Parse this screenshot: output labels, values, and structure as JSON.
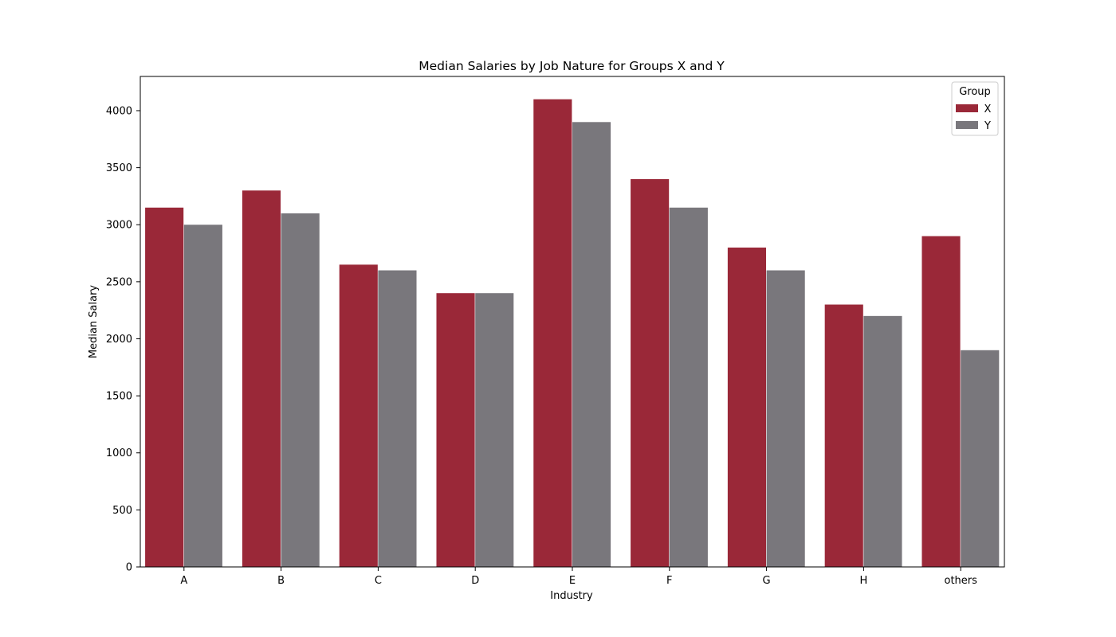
{
  "chart_data": {
    "type": "bar",
    "title": "Median Salaries by Job Nature for Groups X and Y",
    "xlabel": "Industry",
    "ylabel": "Median Salary",
    "categories": [
      "A",
      "B",
      "C",
      "D",
      "E",
      "F",
      "G",
      "H",
      "others"
    ],
    "series": [
      {
        "name": "X",
        "color": "#9a2838",
        "values": [
          3150,
          3300,
          2650,
          2400,
          4100,
          3400,
          2800,
          2300,
          2900
        ]
      },
      {
        "name": "Y",
        "color": "#79777c",
        "values": [
          3000,
          3100,
          2600,
          2400,
          3900,
          3150,
          2600,
          2200,
          1900
        ]
      }
    ],
    "ylim": [
      0,
      4300
    ],
    "yticks": [
      0,
      500,
      1000,
      1500,
      2000,
      2500,
      3000,
      3500,
      4000
    ],
    "legend": {
      "title": "Group",
      "placement": "top-right"
    },
    "grid": false
  }
}
